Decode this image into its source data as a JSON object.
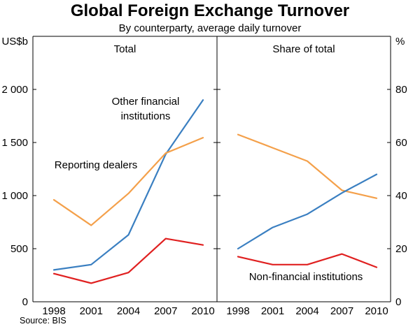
{
  "title": "Global Foreign Exchange Turnover",
  "subtitle": "By counterparty, average daily turnover",
  "source": "Source: BIS",
  "chart_data": [
    {
      "type": "line",
      "panel_title": "Total",
      "ylabel": "US$b",
      "ylim": [
        0,
        2500
      ],
      "yticks": [
        0,
        500,
        1000,
        1500,
        2000
      ],
      "ytick_labels": [
        "0",
        "500",
        "1 000",
        "1 500",
        "2 000"
      ],
      "x": [
        "1998",
        "2001",
        "2004",
        "2007",
        "2010"
      ],
      "grid": false,
      "legend_position": "none",
      "series": [
        {
          "name": "Other financial institutions",
          "color": "#3a7fc1",
          "values": [
            300,
            350,
            630,
            1390,
            1900
          ]
        },
        {
          "name": "Reporting dealers",
          "color": "#f4a04a",
          "values": [
            960,
            720,
            1020,
            1400,
            1545
          ]
        },
        {
          "name": "Non-financial institutions",
          "color": "#e02020",
          "values": [
            265,
            175,
            275,
            595,
            535
          ]
        }
      ],
      "annotations": [
        {
          "text": "Other financial\ninstitutions",
          "color": "#3a7fc1",
          "x": 208,
          "y": 150,
          "anchor": "middle"
        },
        {
          "text": "Reporting dealers",
          "color": "#f4a04a",
          "x": 137,
          "y": 241,
          "anchor": "middle"
        }
      ]
    },
    {
      "type": "line",
      "panel_title": "Share of total",
      "ylabel": "%",
      "ylim": [
        0,
        100
      ],
      "yticks": [
        0,
        20,
        40,
        60,
        80
      ],
      "ytick_labels": [
        "0",
        "20",
        "40",
        "60",
        "80"
      ],
      "x": [
        "1998",
        "2001",
        "2004",
        "2007",
        "2010"
      ],
      "grid": false,
      "legend_position": "none",
      "series": [
        {
          "name": "Reporting dealers",
          "color": "#f4a04a",
          "values": [
            63,
            58,
            53,
            42,
            39
          ]
        },
        {
          "name": "Other financial institutions",
          "color": "#3a7fc1",
          "values": [
            20,
            28,
            33,
            41,
            48
          ]
        },
        {
          "name": "Non-financial institutions",
          "color": "#e02020",
          "values": [
            17,
            14,
            14,
            18,
            13
          ]
        }
      ],
      "annotations": [
        {
          "text": "Non-financial institutions",
          "color": "#e02020",
          "x": 437,
          "y": 401,
          "anchor": "middle"
        }
      ]
    }
  ]
}
